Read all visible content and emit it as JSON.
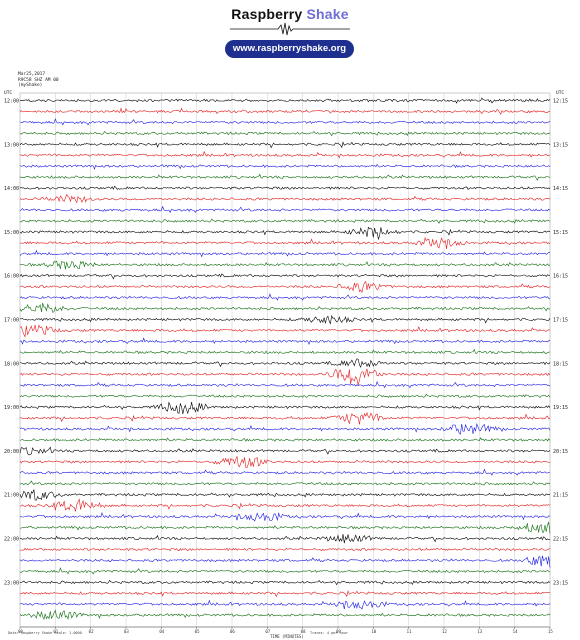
{
  "brand": {
    "name_part1": "Raspberry",
    "name_part2": "Shake",
    "url": "www.raspberryshake.org",
    "accent_color": "#6f6fd6",
    "pill_color": "#1f2f8f"
  },
  "header": {
    "date": "Mar25,2017",
    "station": "R9C58 SHZ AM 00",
    "source": "(myShake)"
  },
  "corners": {
    "left": "UTC",
    "right": "UTC"
  },
  "hour_labels": [
    "12:00",
    "13:00",
    "14:00",
    "15:00",
    "16:00",
    "17:00",
    "18:00",
    "19:00",
    "20:00",
    "21:00",
    "22:00",
    "23:00"
  ],
  "right_labels": [
    "12:15",
    "13:15",
    "14:15",
    "15:15",
    "16:15",
    "17:15",
    "18:15",
    "19:15",
    "20:15",
    "21:15",
    "22:15",
    "23:15"
  ],
  "x_ticks": [
    "00",
    "01",
    "02",
    "03",
    "04",
    "05",
    "06",
    "07",
    "08",
    "09",
    "10",
    "11",
    "12",
    "13",
    "14",
    "15"
  ],
  "x_label": "TIME (MINUTES)",
  "footer": {
    "left": "Data: Raspberry Shake   Scale: 1.0000",
    "right": "Traces: 4 per hour"
  },
  "trace_colors": [
    "#000000",
    "#e41a1c",
    "#1a1ae6",
    "#0c6b0c"
  ],
  "events": [
    {
      "row": 2,
      "minute": 0.6,
      "amp": 0.0
    },
    {
      "row": 9,
      "minute": 1.4,
      "amp": 0.7
    },
    {
      "row": 12,
      "minute": 10.0,
      "amp": 1.0
    },
    {
      "row": 13,
      "minute": 11.9,
      "amp": 1.0
    },
    {
      "row": 15,
      "minute": 1.4,
      "amp": 0.9
    },
    {
      "row": 17,
      "minute": 9.7,
      "amp": 0.9
    },
    {
      "row": 19,
      "minute": 0.6,
      "amp": 1.0
    },
    {
      "row": 20,
      "minute": 8.7,
      "amp": 0.8
    },
    {
      "row": 21,
      "minute": 0.4,
      "amp": 1.0
    },
    {
      "row": 24,
      "minute": 9.6,
      "amp": 0.8
    },
    {
      "row": 25,
      "minute": 9.5,
      "amp": 2.2
    },
    {
      "row": 28,
      "minute": 4.6,
      "amp": 1.2
    },
    {
      "row": 29,
      "minute": 9.6,
      "amp": 1.3
    },
    {
      "row": 30,
      "minute": 12.7,
      "amp": 1.2
    },
    {
      "row": 32,
      "minute": 0.2,
      "amp": 0.6
    },
    {
      "row": 33,
      "minute": 6.3,
      "amp": 1.2
    },
    {
      "row": 36,
      "minute": 0.4,
      "amp": 1.0
    },
    {
      "row": 37,
      "minute": 1.6,
      "amp": 1.3
    },
    {
      "row": 38,
      "minute": 6.8,
      "amp": 1.0
    },
    {
      "row": 39,
      "minute": 14.8,
      "amp": 1.3
    },
    {
      "row": 40,
      "minute": 9.3,
      "amp": 0.8
    },
    {
      "row": 42,
      "minute": 15.0,
      "amp": 1.5
    },
    {
      "row": 46,
      "minute": 9.6,
      "amp": 1.0
    },
    {
      "row": 47,
      "minute": 1.0,
      "amp": 1.0
    }
  ]
}
